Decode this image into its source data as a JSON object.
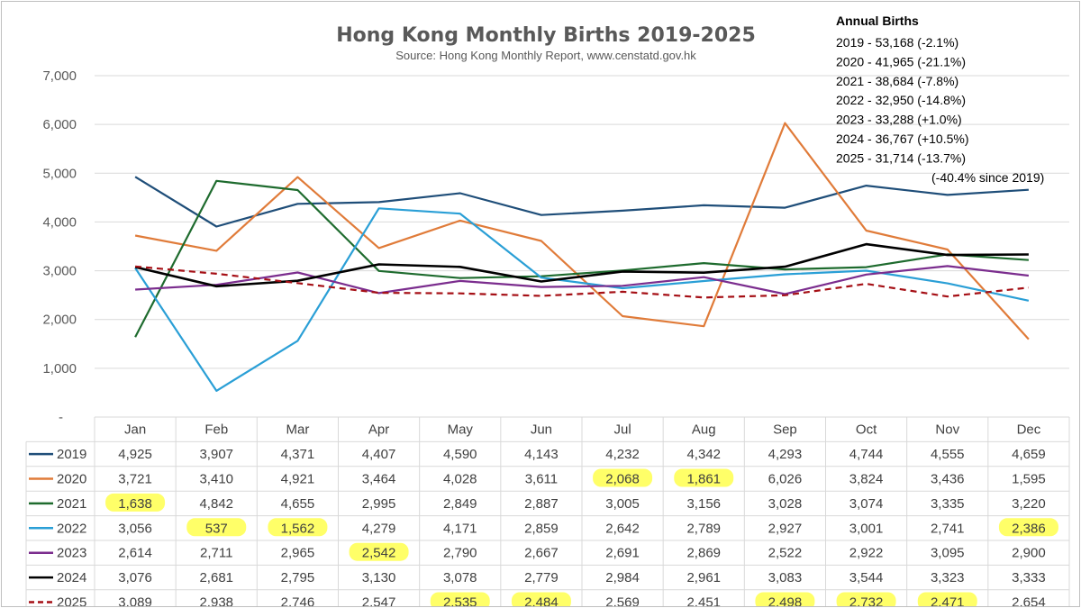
{
  "chart_data": {
    "type": "line",
    "title": "Hong Kong Monthly Births 2019-2025",
    "subtitle": "Source: Hong Kong Monthly Report, www.censtatd.gov.hk",
    "categories": [
      "Jan",
      "Feb",
      "Mar",
      "Apr",
      "May",
      "Jun",
      "Jul",
      "Aug",
      "Sep",
      "Oct",
      "Nov",
      "Dec"
    ],
    "ylim": [
      0,
      7000
    ],
    "yticks": [
      {
        "value": 0,
        "label": "-"
      },
      {
        "value": 1000,
        "label": "1,000"
      },
      {
        "value": 2000,
        "label": "2,000"
      },
      {
        "value": 3000,
        "label": "3,000"
      },
      {
        "value": 4000,
        "label": "4,000"
      },
      {
        "value": 5000,
        "label": "5,000"
      },
      {
        "value": 6000,
        "label": "6,000"
      },
      {
        "value": 7000,
        "label": "7,000"
      }
    ],
    "grid": true,
    "legend": "data-table",
    "series": [
      {
        "name": "2019",
        "color": "#1f4e79",
        "dashed": false,
        "values": [
          4925,
          3907,
          4371,
          4407,
          4590,
          4143,
          4232,
          4342,
          4293,
          4744,
          4555,
          4659
        ],
        "labels": [
          "4,925",
          "3,907",
          "4,371",
          "4,407",
          "4,590",
          "4,143",
          "4,232",
          "4,342",
          "4,293",
          "4,744",
          "4,555",
          "4,659"
        ],
        "highlight": []
      },
      {
        "name": "2020",
        "color": "#e07b39",
        "dashed": false,
        "values": [
          3721,
          3410,
          4921,
          3464,
          4028,
          3611,
          2068,
          1861,
          6026,
          3824,
          3436,
          1595
        ],
        "labels": [
          "3,721",
          "3,410",
          "4,921",
          "3,464",
          "4,028",
          "3,611",
          "2,068",
          "1,861",
          "6,026",
          "3,824",
          "3,436",
          "1,595"
        ],
        "highlight": [
          6,
          7
        ]
      },
      {
        "name": "2021",
        "color": "#1e6b2e",
        "dashed": false,
        "values": [
          1638,
          4842,
          4655,
          2995,
          2849,
          2887,
          3005,
          3156,
          3028,
          3074,
          3335,
          3220
        ],
        "labels": [
          "1,638",
          "4,842",
          "4,655",
          "2,995",
          "2,849",
          "2,887",
          "3,005",
          "3,156",
          "3,028",
          "3,074",
          "3,335",
          "3,220"
        ],
        "highlight": [
          0
        ]
      },
      {
        "name": "2022",
        "color": "#2a9fd6",
        "dashed": false,
        "values": [
          3056,
          537,
          1562,
          4279,
          4171,
          2859,
          2642,
          2789,
          2927,
          3001,
          2741,
          2386
        ],
        "labels": [
          "3,056",
          "537",
          "1,562",
          "4,279",
          "4,171",
          "2,859",
          "2,642",
          "2,789",
          "2,927",
          "3,001",
          "2,741",
          "2,386"
        ],
        "highlight": [
          1,
          2,
          11
        ]
      },
      {
        "name": "2023",
        "color": "#7b2d8e",
        "dashed": false,
        "values": [
          2614,
          2711,
          2965,
          2542,
          2790,
          2667,
          2691,
          2869,
          2522,
          2922,
          3095,
          2900
        ],
        "labels": [
          "2,614",
          "2,711",
          "2,965",
          "2,542",
          "2,790",
          "2,667",
          "2,691",
          "2,869",
          "2,522",
          "2,922",
          "3,095",
          "2,900"
        ],
        "highlight": [
          3
        ]
      },
      {
        "name": "2024",
        "color": "#000000",
        "dashed": false,
        "values": [
          3076,
          2681,
          2795,
          3130,
          3078,
          2779,
          2984,
          2961,
          3083,
          3544,
          3323,
          3333
        ],
        "labels": [
          "3,076",
          "2,681",
          "2,795",
          "3,130",
          "3,078",
          "2,779",
          "2,984",
          "2,961",
          "3,083",
          "3,544",
          "3,323",
          "3,333"
        ],
        "highlight": []
      },
      {
        "name": "2025",
        "color": "#a50f15",
        "dashed": true,
        "values": [
          3089,
          2938,
          2746,
          2547,
          2535,
          2484,
          2569,
          2451,
          2498,
          2732,
          2471,
          2654
        ],
        "labels": [
          "3,089",
          "2,938",
          "2,746",
          "2,547",
          "2,535",
          "2,484",
          "2,569",
          "2,451",
          "2,498",
          "2,732",
          "2,471",
          "2,654"
        ],
        "highlight": [
          4,
          5,
          8,
          9,
          10
        ]
      }
    ],
    "annotation": {
      "title": "Annual Births",
      "lines": [
        "2019 - 53,168 (-2.1%)",
        "2020 - 41,965 (-21.1%)",
        "2021 - 38,684 (-7.8%)",
        "2022 - 32,950 (-14.8%)",
        "2023 - 33,288 (+1.0%)",
        "2024 - 36,767 (+10.5%)",
        "2025 - 31,714 (-13.7%)",
        "(-40.4% since 2019)"
      ]
    },
    "highlight_color": "#ffff4d"
  }
}
